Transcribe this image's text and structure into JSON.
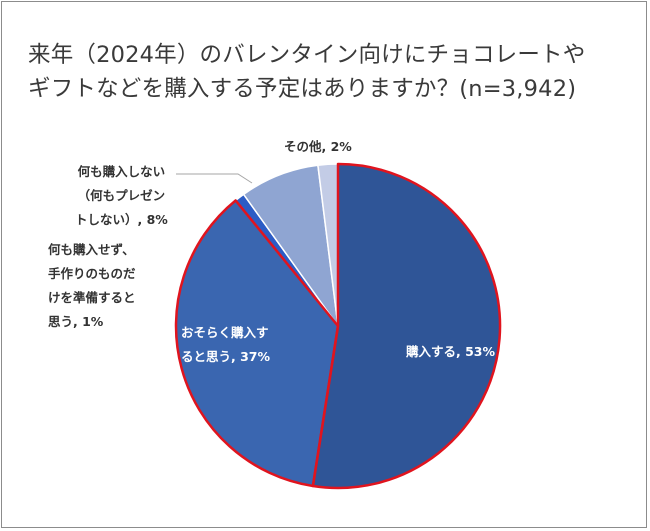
{
  "chart_data": {
    "type": "pie",
    "title_lines": [
      "来年（2024年）のバレンタイン向けにチョコレートや",
      "ギフトなどを購入する予定はありますか？(n=3,942)"
    ],
    "slices": [
      {
        "name": "購入する",
        "value": 53,
        "label": "購入する, 53%",
        "color": "#2f5597"
      },
      {
        "name": "おそらく購入すると思う",
        "value": 37,
        "label_lines": [
          "おそらく購入す",
          "ると思う, 37%"
        ],
        "color": "#3a66b0"
      },
      {
        "name": "何も購入せず、手作りのものだけを準備すると思う",
        "value": 1,
        "label_lines": [
          "何も購入せず、",
          "手作りのものだ",
          "けを準備すると",
          "思う, 1%"
        ],
        "color": "#2c5cc5"
      },
      {
        "name": "何も購入しない（何もプレゼントしない）",
        "value": 8,
        "label_lines": [
          "何も購入しない",
          "（何もプレゼン",
          "トしない）, 8%"
        ],
        "color": "#8fa5d2"
      },
      {
        "name": "その他",
        "value": 2,
        "label": "その他, 2%",
        "color": "#c3cce6"
      }
    ],
    "highlight_border_color": "#e0141e",
    "legend": "none"
  }
}
